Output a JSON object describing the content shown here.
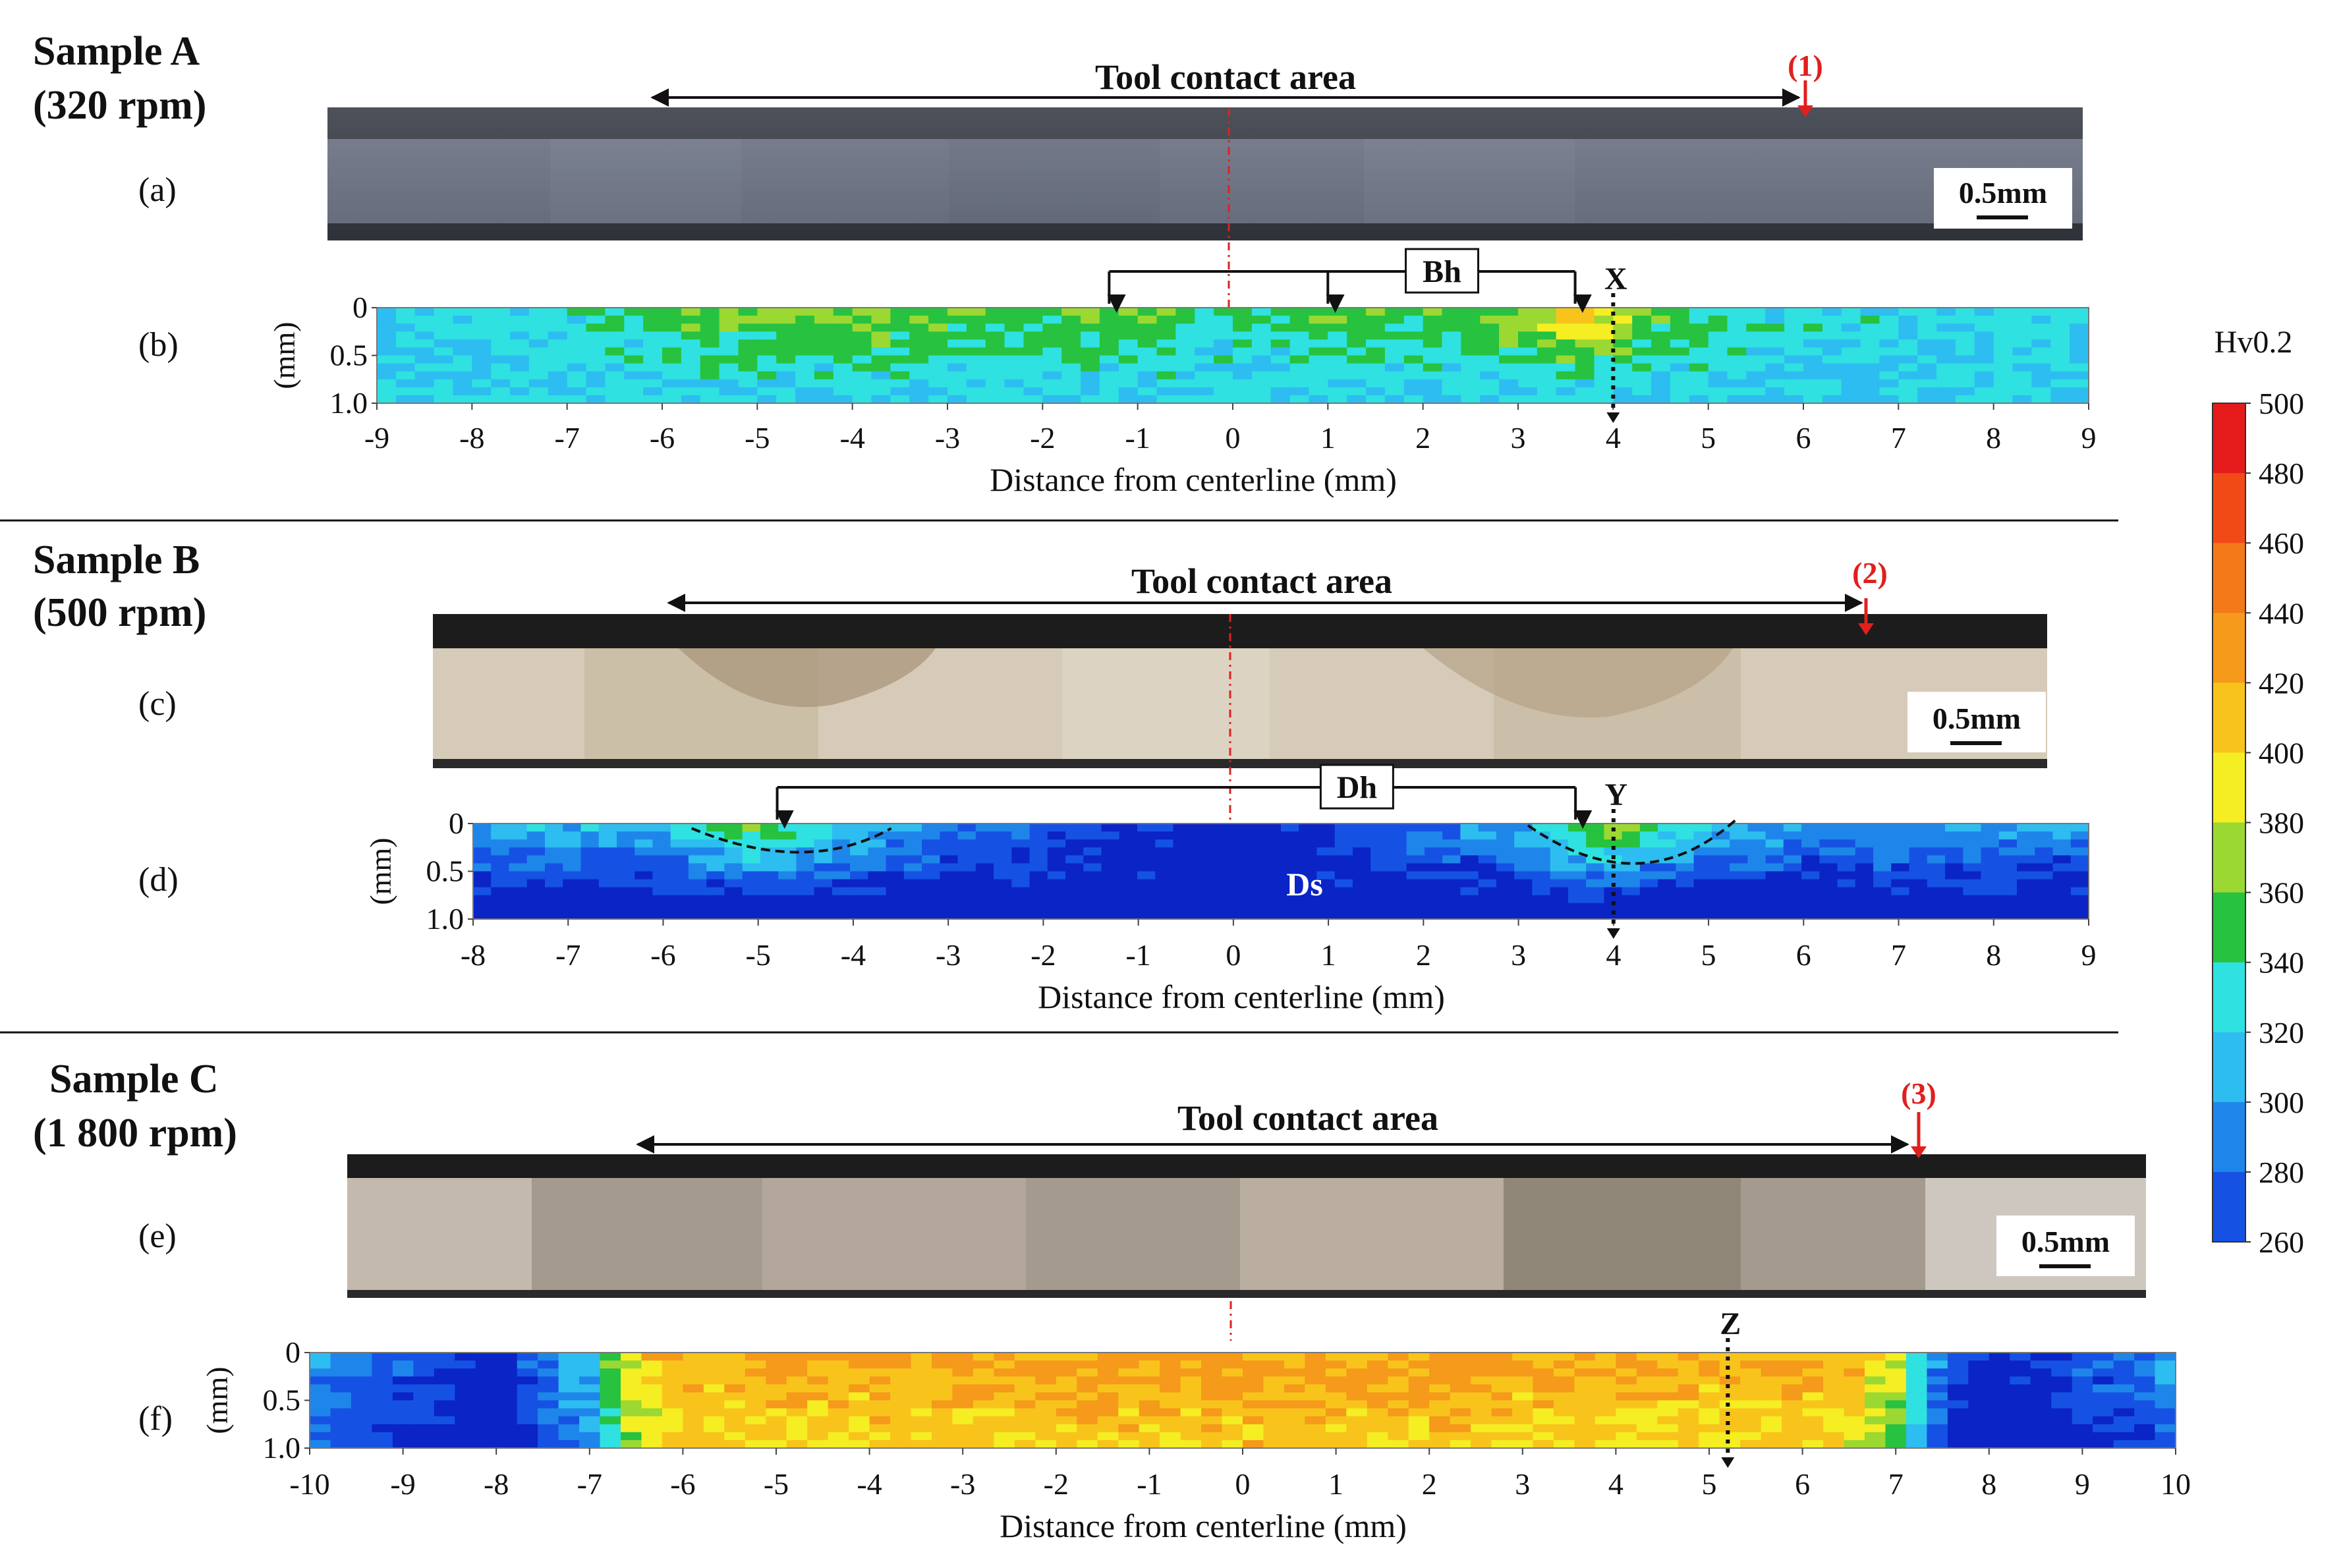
{
  "colors": {
    "annotation_red": "#e0201e",
    "centerline_red": "#e0201e",
    "micrograph_a": "#6f7587",
    "micrograph_dark_band": "#1c1c1c",
    "micrograph_b": "#d6cbb8",
    "micrograph_c": "#a49a8e"
  },
  "icons": {
    "double_arrow": "double-headed-arrow-icon",
    "pointer": "down-arrow-icon",
    "scale_bar": "scale-bar-icon"
  },
  "samples": [
    {
      "title": "Sample A",
      "speed": "(320 rpm)",
      "micro_label": "(a)",
      "map_label": "(b)",
      "tool_contact": "Tool contact area",
      "red_marker": "(1)",
      "scale_bar": "0.5mm",
      "zone_label": "Bh",
      "probe_label": "X",
      "inner_label": "",
      "xlabel": "Distance from centerline (mm)",
      "ylabel": "(mm)"
    },
    {
      "title": "Sample B",
      "speed": "(500 rpm)",
      "micro_label": "(c)",
      "map_label": "(d)",
      "tool_contact": "Tool contact area",
      "red_marker": "(2)",
      "scale_bar": "0.5mm",
      "zone_label": "Dh",
      "probe_label": "Y",
      "inner_label": "Ds",
      "xlabel": "Distance from centerline (mm)",
      "ylabel": "(mm)"
    },
    {
      "title": "Sample C",
      "speed": "(1 800 rpm)",
      "micro_label": "(e)",
      "map_label": "(f)",
      "tool_contact": "Tool contact area",
      "red_marker": "(3)",
      "scale_bar": "0.5mm",
      "zone_label": "",
      "probe_label": "Z",
      "inner_label": "",
      "xlabel": "Distance from centerline (mm)",
      "ylabel": "(mm)"
    }
  ],
  "colorbar": {
    "title": "Hv0.2",
    "levels": [
      500,
      480,
      460,
      440,
      420,
      400,
      380,
      360,
      340,
      320,
      300,
      280,
      260
    ],
    "colors": [
      "#e51b1b",
      "#f24a16",
      "#f47918",
      "#f59a1a",
      "#f8c41c",
      "#f4ee22",
      "#9bd832",
      "#27c23f",
      "#2fe1e1",
      "#2dbdf0",
      "#1e86ea",
      "#1552e3",
      "#0a24c6"
    ]
  },
  "chart_data": [
    {
      "type": "heatmap",
      "panel": "(b)",
      "xlabel": "Distance from centerline (mm)",
      "ylabel": "(mm)",
      "xlim": [
        -9,
        9
      ],
      "ylim": [
        0,
        1.0
      ],
      "x_ticks": [
        "-9",
        "-8",
        "-7",
        "-6",
        "-5",
        "-4",
        "-3",
        "-2",
        "-1",
        "0",
        "1",
        "2",
        "3",
        "4",
        "5",
        "6",
        "7",
        "8",
        "9"
      ],
      "y_ticks": [
        "0",
        "0.5",
        "1.0"
      ],
      "tool_contact_range": [
        -6.2,
        5.8
      ],
      "marker_x": 6.0,
      "zone_points": [
        -1.3,
        1.0,
        3.6
      ],
      "probe_x": 4.0,
      "base_hardness": 340,
      "hardness_profile": {
        "x": [
          -9,
          -7,
          -5.5,
          -4,
          -2,
          -1,
          0,
          1,
          2,
          3,
          3.7,
          4.5,
          6,
          9
        ],
        "surface_hv": [
          345,
          350,
          380,
          390,
          375,
          380,
          355,
          380,
          370,
          390,
          440,
          370,
          350,
          345
        ]
      }
    },
    {
      "type": "heatmap",
      "panel": "(d)",
      "xlabel": "Distance from centerline (mm)",
      "ylabel": "(mm)",
      "xlim": [
        -8,
        9
      ],
      "ylim": [
        0,
        1.0
      ],
      "x_ticks": [
        "-8",
        "-7",
        "-6",
        "-5",
        "-4",
        "-3",
        "-2",
        "-1",
        "0",
        "1",
        "2",
        "3",
        "4",
        "5",
        "6",
        "7",
        "8",
        "9"
      ],
      "y_ticks": [
        "0",
        "0.5",
        "1.0"
      ],
      "tool_contact_range": [
        -5.9,
        6.6
      ],
      "marker_x": 6.7,
      "zone_points": [
        -4.8,
        3.6
      ],
      "probe_x": 4.0,
      "base_hardness": 260,
      "hardness_profile": {
        "x": [
          -8,
          -6,
          -5,
          -4,
          -3,
          0,
          3,
          4,
          5,
          6,
          9
        ],
        "surface_hv": [
          330,
          330,
          390,
          340,
          310,
          260,
          330,
          400,
          340,
          320,
          320
        ]
      }
    },
    {
      "type": "heatmap",
      "panel": "(f)",
      "xlabel": "Distance from centerline (mm)",
      "ylabel": "(mm)",
      "xlim": [
        -10,
        10
      ],
      "ylim": [
        0,
        1.0
      ],
      "x_ticks": [
        "-10",
        "-9",
        "-8",
        "-7",
        "-6",
        "-5",
        "-4",
        "-3",
        "-2",
        "-1",
        "0",
        "1",
        "2",
        "3",
        "4",
        "5",
        "6",
        "7",
        "8",
        "9",
        "10"
      ],
      "y_ticks": [
        "0",
        "0.5",
        "1.0"
      ],
      "tool_contact_range": [
        -6.3,
        7.1
      ],
      "marker_x": 7.2,
      "zone_points": [],
      "probe_x": 5.2,
      "base_hardness": 440,
      "hardness_profile": {
        "x": [
          -10,
          -8,
          -7,
          -6.5,
          -6,
          0,
          6.5,
          7,
          7.5,
          8,
          10
        ],
        "surface_hv": [
          320,
          270,
          340,
          420,
          440,
          450,
          440,
          400,
          300,
          270,
          320
        ]
      }
    }
  ]
}
